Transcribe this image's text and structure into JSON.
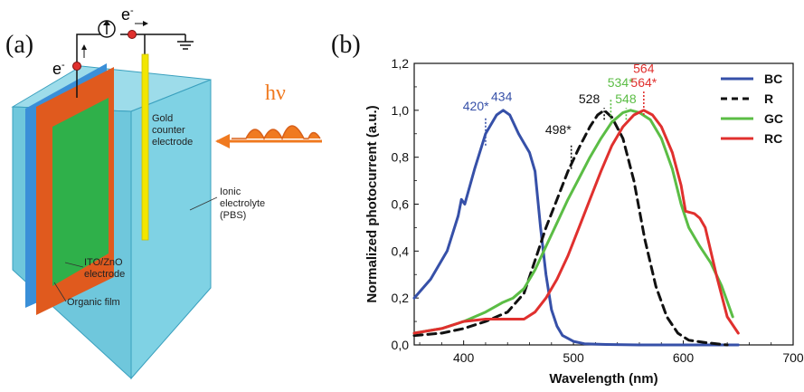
{
  "panel_a": {
    "label": "(a)",
    "electron_left": "e",
    "electron_top": "e",
    "electron_sup": "-",
    "gold_label": [
      "Gold",
      "counter",
      "electrode"
    ],
    "light": "hν",
    "electrolyte_label": [
      "Ionic",
      "electrolyte",
      "(PBS)"
    ],
    "ito_label": [
      "ITO/ZnO",
      "electrode"
    ],
    "film_label": "Organic film",
    "colors": {
      "box": "#73cde0",
      "box_edge": "#3aa0be",
      "ito": "#3a8fd8",
      "film_frame": "#e05a1e",
      "organic": "#2fb04a",
      "gold": "#f2e600",
      "photon": "#f07a20"
    }
  },
  "panel_b": {
    "label": "(b)"
  },
  "chart_data": {
    "type": "line",
    "xlabel": "Wavelength (nm)",
    "ylabel": "Normalized photocurrent (a.u.)",
    "xlim": [
      355,
      700
    ],
    "ylim": [
      0,
      1.2
    ],
    "xticks": [
      "400",
      "500",
      "600",
      "700"
    ],
    "xtick_values": [
      400,
      500,
      600,
      700
    ],
    "yticks": [
      "0,0",
      "0,2",
      "0,4",
      "0,6",
      "0,8",
      "1,0",
      "1,2"
    ],
    "ytick_values": [
      0,
      0.2,
      0.4,
      0.6,
      0.8,
      1.0,
      1.2
    ],
    "legend_position": "top-right",
    "series": [
      {
        "name": "BC",
        "color": "#3650a8",
        "dash": "solid",
        "x": [
          355,
          370,
          385,
          395,
          398,
          401,
          410,
          420,
          430,
          436,
          442,
          450,
          455,
          460,
          465,
          470,
          475,
          480,
          485,
          490,
          500,
          510,
          530,
          560,
          600,
          650
        ],
        "y": [
          0.2,
          0.28,
          0.4,
          0.55,
          0.62,
          0.6,
          0.75,
          0.9,
          0.98,
          1.0,
          0.98,
          0.9,
          0.86,
          0.82,
          0.74,
          0.5,
          0.3,
          0.15,
          0.08,
          0.04,
          0.015,
          0.005,
          0.002,
          0.0,
          0.0,
          0.0
        ]
      },
      {
        "name": "R",
        "color": "#111111",
        "dash": "dashed",
        "x": [
          355,
          380,
          400,
          420,
          440,
          455,
          465,
          475,
          485,
          495,
          505,
          515,
          522,
          528,
          535,
          545,
          555,
          565,
          575,
          585,
          595,
          605,
          620,
          640
        ],
        "y": [
          0.04,
          0.05,
          0.07,
          0.1,
          0.14,
          0.22,
          0.36,
          0.5,
          0.62,
          0.74,
          0.84,
          0.93,
          0.98,
          1.0,
          0.97,
          0.88,
          0.7,
          0.45,
          0.25,
          0.12,
          0.05,
          0.02,
          0.01,
          0.0
        ]
      },
      {
        "name": "GC",
        "color": "#5bbd45",
        "dash": "solid",
        "x": [
          355,
          380,
          400,
          420,
          435,
          445,
          455,
          465,
          475,
          485,
          495,
          505,
          515,
          525,
          535,
          545,
          552,
          560,
          570,
          580,
          590,
          598,
          605,
          615,
          625,
          635,
          645
        ],
        "y": [
          0.05,
          0.07,
          0.1,
          0.14,
          0.18,
          0.2,
          0.24,
          0.32,
          0.42,
          0.52,
          0.62,
          0.71,
          0.8,
          0.88,
          0.95,
          0.99,
          1.0,
          0.99,
          0.96,
          0.88,
          0.75,
          0.6,
          0.5,
          0.42,
          0.35,
          0.25,
          0.12
        ]
      },
      {
        "name": "RC",
        "color": "#e0302e",
        "dash": "solid",
        "x": [
          355,
          380,
          400,
          420,
          440,
          455,
          465,
          475,
          485,
          495,
          505,
          515,
          525,
          535,
          545,
          555,
          564,
          572,
          580,
          590,
          598,
          602,
          610,
          615,
          620,
          630,
          640,
          650
        ],
        "y": [
          0.05,
          0.07,
          0.1,
          0.11,
          0.11,
          0.11,
          0.14,
          0.2,
          0.28,
          0.38,
          0.5,
          0.62,
          0.74,
          0.85,
          0.93,
          0.98,
          1.0,
          0.98,
          0.93,
          0.82,
          0.68,
          0.57,
          0.56,
          0.54,
          0.5,
          0.3,
          0.12,
          0.05
        ]
      }
    ],
    "annotations": [
      {
        "text": "420*",
        "x": 423,
        "y": 1.0,
        "color": "#3650a8",
        "anchor": "end"
      },
      {
        "text": "434",
        "x": 425,
        "y": 1.04,
        "color": "#3650a8",
        "anchor": "start"
      },
      {
        "text": "528",
        "x": 524,
        "y": 1.03,
        "color": "#111111",
        "anchor": "end"
      },
      {
        "text": "498*",
        "x": 498,
        "y": 0.9,
        "color": "#111111",
        "anchor": "end"
      },
      {
        "text": "534*",
        "x": 531,
        "y": 1.1,
        "color": "#5bbd45",
        "anchor": "start"
      },
      {
        "text": "548",
        "x": 538,
        "y": 1.03,
        "color": "#5bbd45",
        "anchor": "start"
      },
      {
        "text": "564",
        "x": 564,
        "y": 1.16,
        "color": "#e0302e",
        "anchor": "middle"
      },
      {
        "text": "564*",
        "x": 564,
        "y": 1.1,
        "color": "#e0302e",
        "anchor": "middle"
      }
    ],
    "markers": [
      {
        "x": 420,
        "y0": 0.85,
        "y1": 0.97,
        "color": "#3650a8"
      },
      {
        "x": 498,
        "y0": 0.75,
        "y1": 0.85,
        "color": "#111111"
      },
      {
        "x": 528,
        "y0": 0.96,
        "y1": 1.01,
        "color": "#111111"
      },
      {
        "x": 534,
        "y0": 0.96,
        "y1": 1.05,
        "color": "#5bbd45"
      },
      {
        "x": 548,
        "y0": 0.96,
        "y1": 1.01,
        "color": "#5bbd45"
      },
      {
        "x": 564,
        "y0": 0.98,
        "y1": 1.08,
        "color": "#e0302e"
      }
    ]
  }
}
